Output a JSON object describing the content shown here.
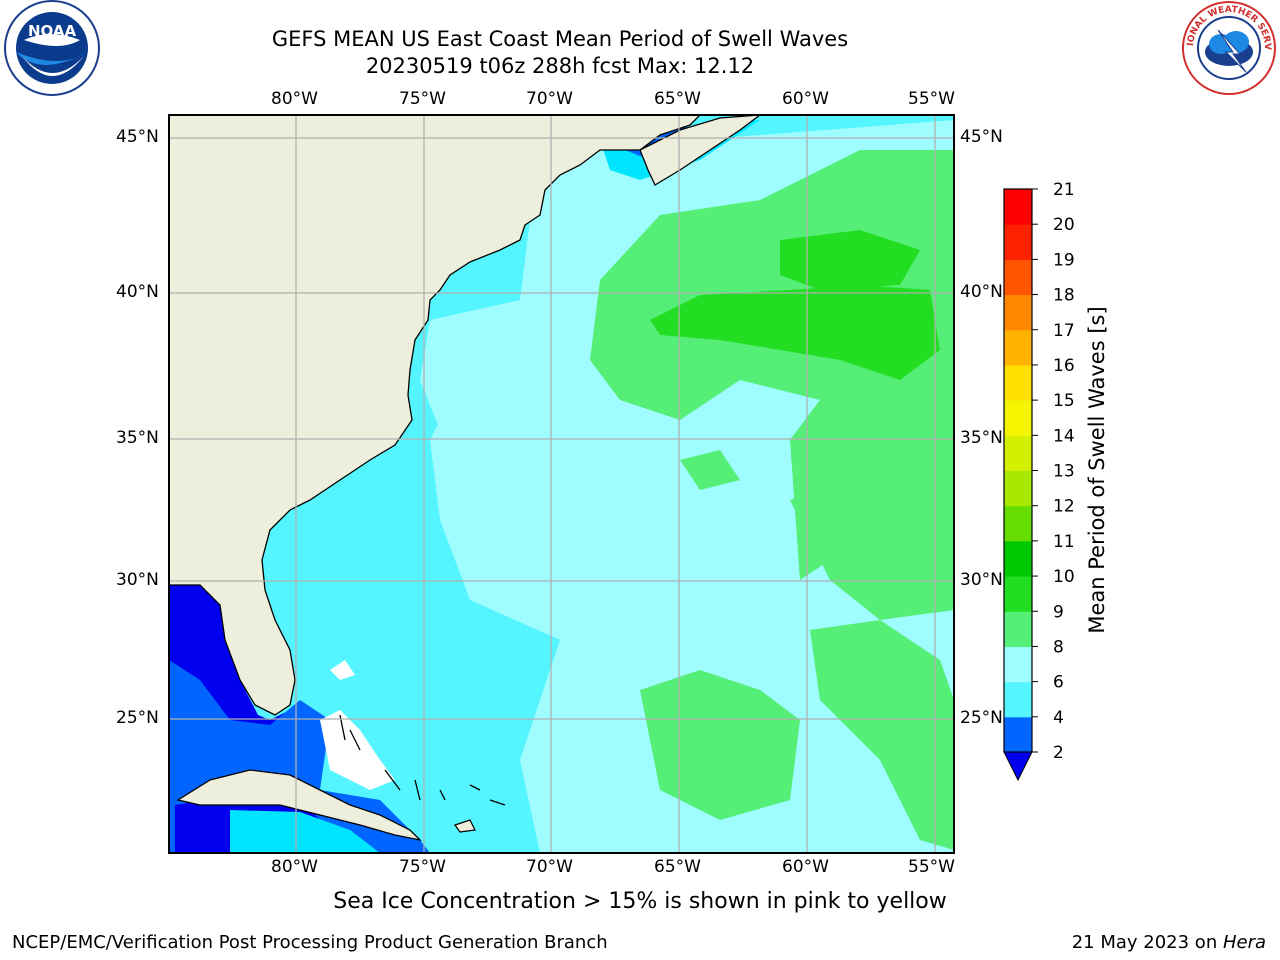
{
  "title": {
    "line1": "GEFS MEAN US East Coast Mean Period of Swell Waves",
    "line2": "20230519 t06z 288h fcst   Max: 12.12"
  },
  "logos": {
    "left": "NOAA",
    "right": "NATIONAL WEATHER SERVICE"
  },
  "axes": {
    "lon_labels": [
      "80°W",
      "75°W",
      "70°W",
      "65°W",
      "60°W",
      "55°W"
    ],
    "lat_labels": [
      "45°N",
      "40°N",
      "35°N",
      "30°N",
      "25°N"
    ]
  },
  "colorbar": {
    "label": "Mean Period of Swell Waves [s]",
    "ticks": [
      "2",
      "4",
      "6",
      "8",
      "9",
      "10",
      "11",
      "12",
      "13",
      "14",
      "15",
      "16",
      "17",
      "18",
      "19",
      "20",
      "21"
    ],
    "colors": [
      "#0066ff",
      "#00e5ff",
      "#55f5ff",
      "#9ffcff",
      "#55ee77",
      "#22dd22",
      "#00c800",
      "#66dd00",
      "#a8e800",
      "#d4f000",
      "#f5f500",
      "#ffe000",
      "#ffb300",
      "#ff8800",
      "#ff5500",
      "#ff2200",
      "#ff0000"
    ],
    "under_color": "#0000ee"
  },
  "colors": {
    "land": "#eeeedd",
    "grid": "#b0b0b0",
    "deep_blue": "#0000ee",
    "blue": "#0066ff",
    "cyan": "#00e5ff",
    "light_cyan": "#55f5ff",
    "pale_cyan": "#9ffcff",
    "green": "#55ee77",
    "bright_green": "#22dd22"
  },
  "notes": {
    "sea_ice": "Sea Ice Concentration > 15% is shown in pink to yellow"
  },
  "footer": {
    "left": "NCEP/EMC/Verification Post Processing Product Generation Branch",
    "right_date": "21 May 2023 on ",
    "right_machine": "Hera"
  }
}
